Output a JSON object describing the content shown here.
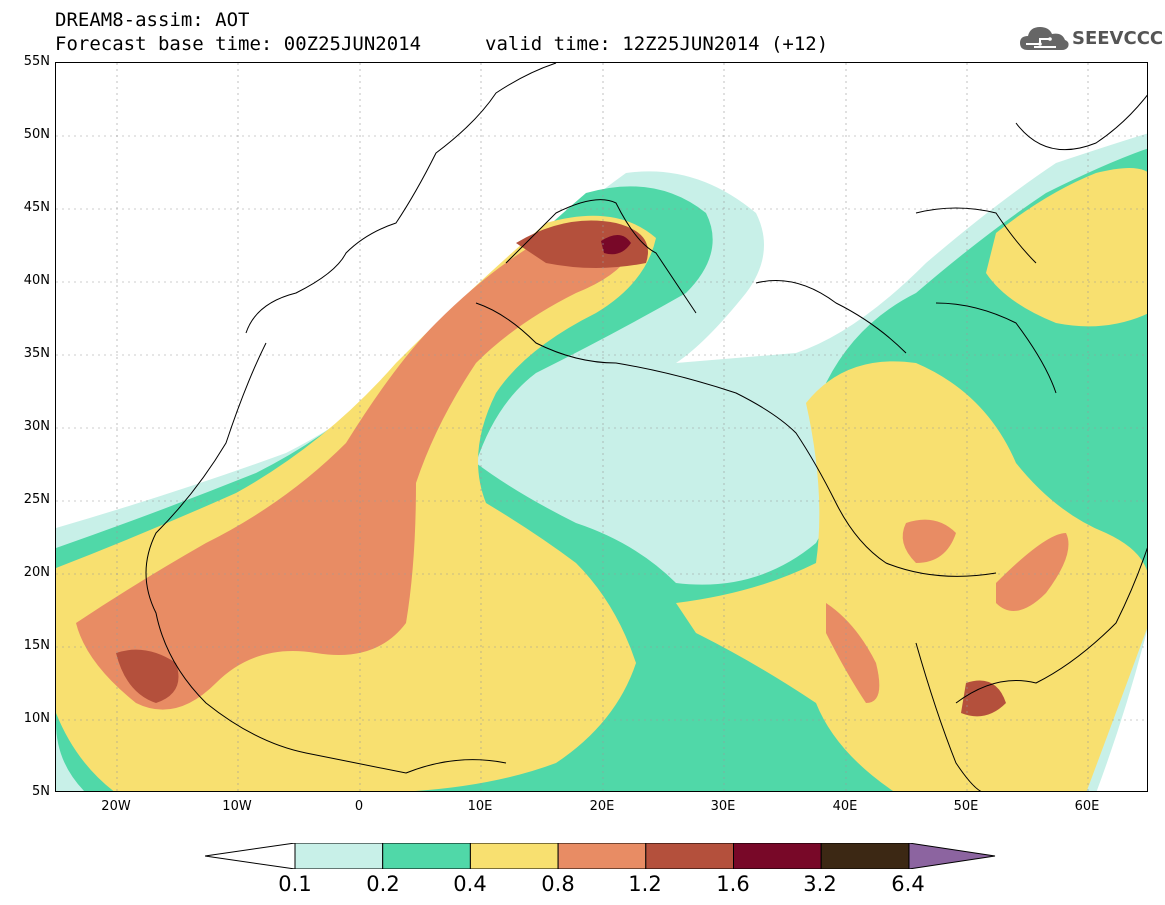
{
  "header": {
    "title_line1": "DREAM8-assim: AOT",
    "title_line2_left": "Forecast base time: 00Z25JUN2014",
    "title_line2_right": "valid time: 12Z25JUN2014 (+12)",
    "logo_text": "SEEVCCC"
  },
  "map": {
    "projection": "lat-lon",
    "lat_range": [
      5,
      55
    ],
    "lon_range": [
      -25,
      65
    ],
    "lat_ticks": [
      "55N",
      "50N",
      "45N",
      "40N",
      "35N",
      "30N",
      "25N",
      "20N",
      "15N",
      "10N",
      "5N"
    ],
    "lon_ticks": [
      "20W",
      "10W",
      "0",
      "10E",
      "20E",
      "30E",
      "40E",
      "50E",
      "60E"
    ]
  },
  "colorbar": {
    "labels": [
      "0.1",
      "0.2",
      "0.4",
      "0.8",
      "1.2",
      "1.6",
      "3.2",
      "6.4"
    ],
    "colors": [
      "#c8f0e8",
      "#50d8a8",
      "#f8e070",
      "#e88c64",
      "#b4503c",
      "#780828",
      "#3c2814",
      "#8c64a0"
    ],
    "extend_low_color": "#ffffff"
  }
}
